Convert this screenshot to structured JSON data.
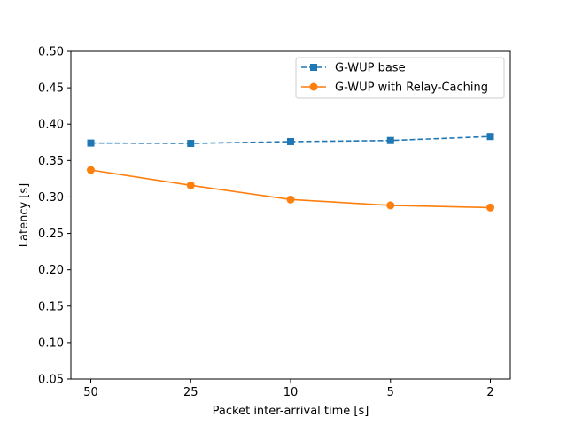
{
  "chart_data": {
    "type": "line",
    "categories": [
      "50",
      "25",
      "10",
      "5",
      "2"
    ],
    "series": [
      {
        "name": "G-WUP base",
        "values": [
          0.374,
          0.3735,
          0.376,
          0.3775,
          0.383
        ],
        "color": "#1f77b4",
        "line_style": "dashed",
        "marker": "square"
      },
      {
        "name": "G-WUP with Relay-Caching",
        "values": [
          0.337,
          0.316,
          0.2965,
          0.2885,
          0.2855
        ],
        "color": "#ff7f0e",
        "line_style": "solid",
        "marker": "circle"
      }
    ],
    "xlabel": "Packet inter-arrival time [s]",
    "ylabel": "Latency [s]",
    "ylim": [
      0.05,
      0.5
    ],
    "yticks": [
      "0.05",
      "0.10",
      "0.15",
      "0.20",
      "0.25",
      "0.30",
      "0.35",
      "0.40",
      "0.45",
      "0.50"
    ],
    "grid": false,
    "legend_position": "top-right"
  }
}
